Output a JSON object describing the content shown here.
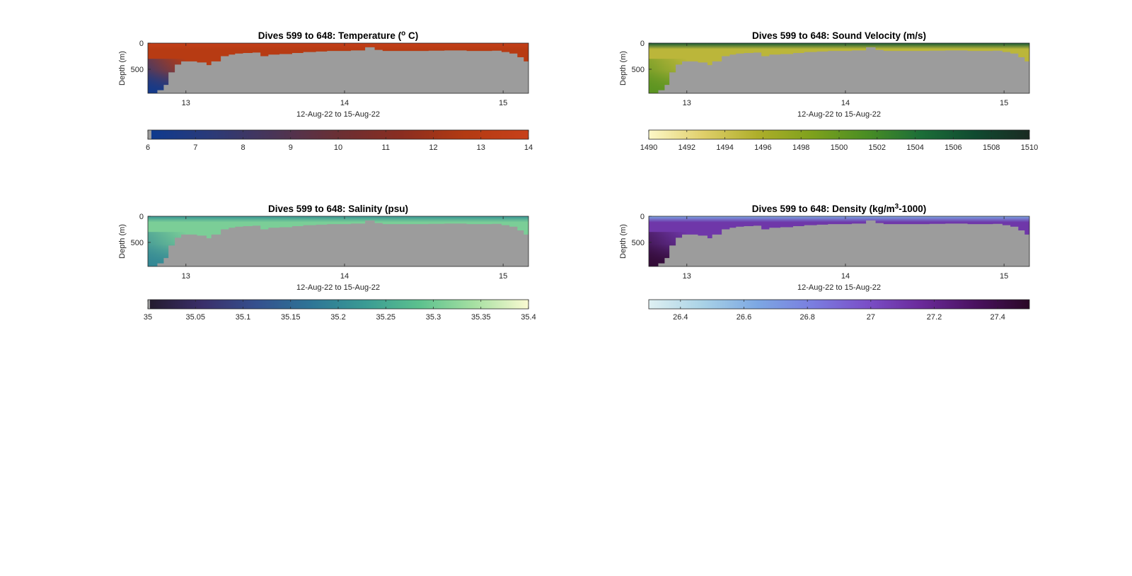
{
  "figure": {
    "background": "#ffffff",
    "seafloor_color": "#9c9c9c"
  },
  "chart_data": [
    {
      "type": "heatmap",
      "title_prefix": "Dives 599 to 648: ",
      "variable": "Temperature",
      "unit_open": " (",
      "unit_sup": "o",
      "unit_close": " C)",
      "xlabel": "12-Aug-22 to 15-Aug-22",
      "ylabel": "Depth (m)",
      "xlim": [
        12.76,
        15.16
      ],
      "x_ticks": [
        13,
        14,
        15
      ],
      "x_tick_labels": [
        "13",
        "14",
        "15"
      ],
      "ylim": [
        0,
        960
      ],
      "y_ticks": [
        0,
        500
      ],
      "y_tick_labels": [
        "0",
        "500"
      ],
      "colorbar": {
        "range": [
          6,
          14
        ],
        "ticks": [
          6,
          7,
          8,
          9,
          10,
          11,
          12,
          13,
          14
        ],
        "tick_labels": [
          "6",
          "7",
          "8",
          "9",
          "10",
          "11",
          "12",
          "13",
          "14"
        ],
        "colormap": [
          "#0d3a8f",
          "#2b3a78",
          "#4a3456",
          "#6a2f34",
          "#8a2d20",
          "#b33a12",
          "#c8401a"
        ]
      },
      "surface_value": 13.8,
      "deep_value": 6.3,
      "field_mid_value": 12.9
    },
    {
      "type": "heatmap",
      "title_prefix": "Dives 599 to 648: ",
      "variable": "Sound Velocity",
      "unit_open": " (m/s)",
      "unit_sup": "",
      "unit_close": "",
      "xlabel": "12-Aug-22 to 15-Aug-22",
      "ylabel": "Depth (m)",
      "xlim": [
        12.76,
        15.16
      ],
      "x_ticks": [
        13,
        14,
        15
      ],
      "x_tick_labels": [
        "13",
        "14",
        "15"
      ],
      "ylim": [
        0,
        960
      ],
      "y_ticks": [
        0,
        500
      ],
      "y_tick_labels": [
        "0",
        "500"
      ],
      "colorbar": {
        "range": [
          1490,
          1510
        ],
        "ticks": [
          1490,
          1492,
          1494,
          1496,
          1498,
          1500,
          1502,
          1504,
          1506,
          1508,
          1510
        ],
        "tick_labels": [
          "1490",
          "1492",
          "1494",
          "1496",
          "1498",
          "1500",
          "1502",
          "1504",
          "1506",
          "1508",
          "1510"
        ],
        "colormap": [
          "#fdf8c8",
          "#e0cf6a",
          "#aeae2a",
          "#7ea11c",
          "#4a8e24",
          "#1c6e38",
          "#104a30",
          "#1a2a22"
        ]
      },
      "surface_value": 1506,
      "deep_value": 1500.5,
      "field_mid_value": 1495
    },
    {
      "type": "heatmap",
      "title_prefix": "Dives 599 to 648: ",
      "variable": "Salinity",
      "unit_open": " (psu)",
      "unit_sup": "",
      "unit_close": "",
      "xlabel": "12-Aug-22 to 15-Aug-22",
      "ylabel": "Depth (m)",
      "xlim": [
        12.76,
        15.16
      ],
      "x_ticks": [
        13,
        14,
        15
      ],
      "x_tick_labels": [
        "13",
        "14",
        "15"
      ],
      "ylim": [
        0,
        960
      ],
      "y_ticks": [
        0,
        500
      ],
      "y_tick_labels": [
        "0",
        "500"
      ],
      "colorbar": {
        "range": [
          35,
          35.4
        ],
        "ticks": [
          35,
          35.05,
          35.1,
          35.15,
          35.2,
          35.25,
          35.3,
          35.35,
          35.4
        ],
        "tick_labels": [
          "35",
          "35.05",
          "35.1",
          "35.15",
          "35.2",
          "35.25",
          "35.3",
          "35.35",
          "35.4"
        ],
        "colormap": [
          "#231a2c",
          "#3a2f6a",
          "#35508e",
          "#2d7596",
          "#3a9b94",
          "#5cc18e",
          "#a6e0a2",
          "#fafad2"
        ]
      },
      "surface_value": 35.22,
      "deep_value": 35.2,
      "field_mid_value": 35.31
    },
    {
      "type": "heatmap",
      "title_prefix": "Dives 599 to 648: ",
      "variable": "Density",
      "unit_open": " (kg/m",
      "unit_sup": "3",
      "unit_close": "-1000)",
      "xlabel": "12-Aug-22 to 15-Aug-22",
      "ylabel": "Depth (m)",
      "xlim": [
        12.76,
        15.16
      ],
      "x_ticks": [
        13,
        14,
        15
      ],
      "x_tick_labels": [
        "13",
        "14",
        "15"
      ],
      "ylim": [
        0,
        960
      ],
      "y_ticks": [
        0,
        500
      ],
      "y_tick_labels": [
        "0",
        "500"
      ],
      "colorbar": {
        "range": [
          26.3,
          27.5
        ],
        "ticks": [
          26.4,
          26.6,
          26.8,
          27,
          27.2,
          27.4
        ],
        "tick_labels": [
          "26.4",
          "26.6",
          "26.8",
          "27",
          "27.2",
          "27.4"
        ],
        "colormap": [
          "#dff0f2",
          "#a9d2e6",
          "#7ca7e3",
          "#7a7ee0",
          "#7a50c8",
          "#6a2a9a",
          "#4a1260",
          "#2a0826"
        ]
      },
      "surface_value": 26.65,
      "deep_value": 27.45,
      "field_mid_value": 27.1
    }
  ],
  "seafloor_profile": {
    "x": [
      12.76,
      12.8,
      12.82,
      12.86,
      12.89,
      12.93,
      12.97,
      13.02,
      13.07,
      13.13,
      13.16,
      13.22,
      13.27,
      13.31,
      13.36,
      13.42,
      13.47,
      13.52,
      13.59,
      13.67,
      13.74,
      13.82,
      13.89,
      13.96,
      14.04,
      14.13,
      14.19,
      14.24,
      14.33,
      14.43,
      14.53,
      14.63,
      14.69,
      14.77,
      14.85,
      14.93,
      14.99,
      15.04,
      15.09,
      15.13,
      15.16
    ],
    "depth": [
      960,
      960,
      900,
      800,
      560,
      410,
      350,
      350,
      370,
      420,
      350,
      250,
      220,
      200,
      190,
      180,
      250,
      220,
      210,
      190,
      170,
      160,
      150,
      150,
      140,
      80,
      130,
      150,
      150,
      150,
      145,
      140,
      140,
      150,
      150,
      145,
      170,
      200,
      270,
      350,
      350
    ]
  }
}
